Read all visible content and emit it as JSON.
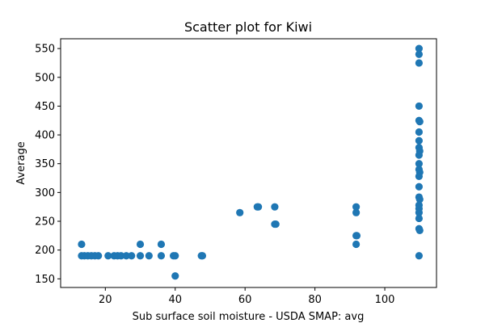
{
  "chart_data": {
    "type": "scatter",
    "title": "Scatter plot for Kiwi",
    "xlabel": "Sub surface soil moisture - USDA SMAP: avg",
    "ylabel": "Average",
    "xlim": [
      7.2,
      114.8
    ],
    "ylim": [
      135,
      567
    ],
    "xticks": [
      20,
      40,
      60,
      80,
      100
    ],
    "yticks": [
      150,
      200,
      250,
      300,
      350,
      400,
      450,
      500,
      550
    ],
    "grid": false,
    "marker_color": "#1f77b4",
    "points": [
      {
        "x": 13.2,
        "y": 210
      },
      {
        "x": 13.2,
        "y": 190
      },
      {
        "x": 14.0,
        "y": 190
      },
      {
        "x": 15.0,
        "y": 190
      },
      {
        "x": 16.0,
        "y": 190
      },
      {
        "x": 17.0,
        "y": 190
      },
      {
        "x": 18.0,
        "y": 190
      },
      {
        "x": 20.8,
        "y": 190
      },
      {
        "x": 22.5,
        "y": 190
      },
      {
        "x": 23.5,
        "y": 190
      },
      {
        "x": 24.5,
        "y": 190
      },
      {
        "x": 26.0,
        "y": 190
      },
      {
        "x": 27.5,
        "y": 190
      },
      {
        "x": 30.0,
        "y": 210
      },
      {
        "x": 30.0,
        "y": 190
      },
      {
        "x": 32.5,
        "y": 190
      },
      {
        "x": 36.0,
        "y": 210
      },
      {
        "x": 36.0,
        "y": 190
      },
      {
        "x": 39.5,
        "y": 190
      },
      {
        "x": 40.0,
        "y": 190
      },
      {
        "x": 40.0,
        "y": 155
      },
      {
        "x": 47.5,
        "y": 190
      },
      {
        "x": 47.8,
        "y": 190
      },
      {
        "x": 58.5,
        "y": 265
      },
      {
        "x": 63.5,
        "y": 275
      },
      {
        "x": 63.8,
        "y": 275
      },
      {
        "x": 68.5,
        "y": 275
      },
      {
        "x": 68.5,
        "y": 245
      },
      {
        "x": 68.8,
        "y": 245
      },
      {
        "x": 91.8,
        "y": 275
      },
      {
        "x": 91.8,
        "y": 265
      },
      {
        "x": 91.8,
        "y": 225
      },
      {
        "x": 92.0,
        "y": 225
      },
      {
        "x": 91.8,
        "y": 210
      },
      {
        "x": 109.8,
        "y": 550
      },
      {
        "x": 109.8,
        "y": 540
      },
      {
        "x": 109.8,
        "y": 525
      },
      {
        "x": 109.8,
        "y": 450
      },
      {
        "x": 109.8,
        "y": 425
      },
      {
        "x": 110.0,
        "y": 423
      },
      {
        "x": 109.8,
        "y": 405
      },
      {
        "x": 109.8,
        "y": 390
      },
      {
        "x": 109.8,
        "y": 378
      },
      {
        "x": 110.0,
        "y": 372
      },
      {
        "x": 109.8,
        "y": 365
      },
      {
        "x": 109.8,
        "y": 350
      },
      {
        "x": 109.8,
        "y": 340
      },
      {
        "x": 110.0,
        "y": 335
      },
      {
        "x": 109.8,
        "y": 328
      },
      {
        "x": 109.8,
        "y": 310
      },
      {
        "x": 109.8,
        "y": 292
      },
      {
        "x": 110.0,
        "y": 288
      },
      {
        "x": 109.8,
        "y": 278
      },
      {
        "x": 109.8,
        "y": 272
      },
      {
        "x": 109.8,
        "y": 265
      },
      {
        "x": 109.8,
        "y": 255
      },
      {
        "x": 109.8,
        "y": 237
      },
      {
        "x": 110.0,
        "y": 234
      },
      {
        "x": 109.8,
        "y": 190
      }
    ]
  }
}
